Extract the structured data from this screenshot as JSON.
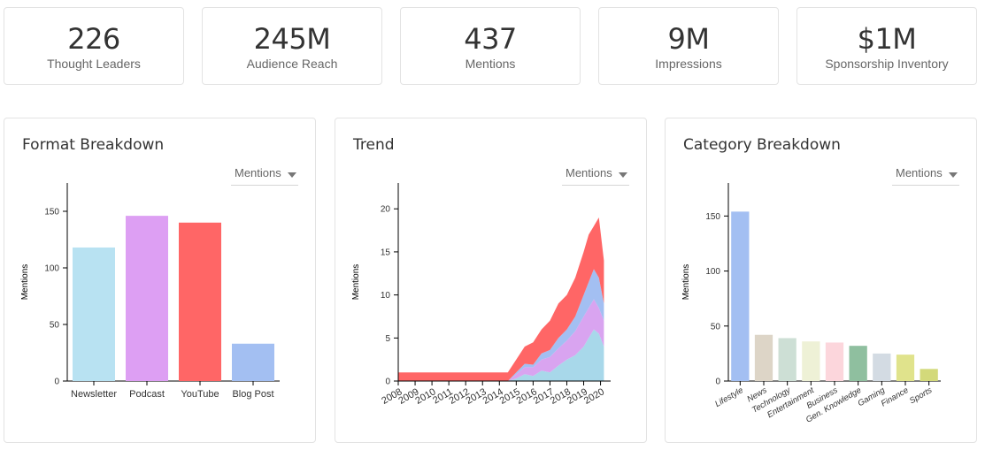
{
  "stats": [
    {
      "value": "226",
      "label": "Thought Leaders"
    },
    {
      "value": "245M",
      "label": "Audience Reach"
    },
    {
      "value": "437",
      "label": "Mentions"
    },
    {
      "value": "9M",
      "label": "Impressions"
    },
    {
      "value": "$1M",
      "label": "Sponsorship Inventory"
    }
  ],
  "panels": {
    "format": {
      "title": "Format Breakdown",
      "dropdown": "Mentions"
    },
    "trend": {
      "title": "Trend",
      "dropdown": "Mentions"
    },
    "category": {
      "title": "Category Breakdown",
      "dropdown": "Mentions"
    }
  },
  "chart_data": [
    {
      "type": "bar",
      "title": "Format Breakdown",
      "ylabel": "Mentions",
      "ylim": [
        0,
        175
      ],
      "yticks": [
        0,
        50,
        100,
        150
      ],
      "categories": [
        "Newsletter",
        "Podcast",
        "YouTube",
        "Blog Post"
      ],
      "values": [
        118,
        146,
        140,
        33
      ],
      "colors": [
        "#b8e2f2",
        "#dd9ff3",
        "#ff6666",
        "#a3bff2"
      ]
    },
    {
      "type": "area",
      "title": "Trend",
      "ylabel": "Mentions",
      "ylim": [
        0,
        23
      ],
      "yticks": [
        0,
        5,
        10,
        15,
        20
      ],
      "xlabels": [
        "2008",
        "2009",
        "2010",
        "2011",
        "2012",
        "2013",
        "2014",
        "2015",
        "2016",
        "2017",
        "2018",
        "2019",
        "2020"
      ],
      "stacked": true,
      "series_colors": [
        "#a8d8ea",
        "#d9a4f0",
        "#a3bff2",
        "#ff6666"
      ],
      "x": [
        2008,
        2014.3,
        2014.5,
        2015,
        2015.5,
        2016,
        2016.5,
        2017,
        2017.5,
        2018,
        2018.5,
        2019,
        2019.3,
        2019.6,
        2019.9,
        2020.2
      ],
      "series": [
        {
          "values": [
            0,
            0,
            0,
            0.3,
            0.8,
            0.6,
            1.2,
            1.0,
            1.8,
            2.5,
            3.0,
            4.0,
            5.0,
            6.0,
            5.5,
            4.0
          ]
        },
        {
          "values": [
            0,
            0,
            0,
            0.5,
            0.8,
            1.0,
            1.3,
            1.8,
            2.0,
            2.2,
            2.8,
            3.5,
            3.5,
            3.5,
            3.0,
            3.0
          ]
        },
        {
          "values": [
            0,
            0,
            0,
            0.2,
            0.4,
            0.3,
            0.7,
            0.8,
            1.2,
            1.3,
            1.7,
            2.5,
            3.0,
            3.5,
            3.5,
            2.0
          ]
        },
        {
          "values": [
            1,
            1,
            1,
            1.5,
            2.0,
            2.6,
            2.8,
            3.4,
            4.0,
            4.0,
            4.5,
            5.0,
            5.5,
            5.0,
            7.0,
            5.0
          ]
        }
      ]
    },
    {
      "type": "bar",
      "title": "Category Breakdown",
      "ylabel": "Mentions",
      "ylim": [
        0,
        180
      ],
      "yticks": [
        0,
        50,
        100,
        150
      ],
      "categories": [
        "Lifestyle",
        "News",
        "Technology",
        "Entertainment",
        "Business",
        "Gen. Knowledge",
        "Gaming",
        "Finance",
        "Sports"
      ],
      "values": [
        154,
        42,
        39,
        36,
        35,
        32,
        25,
        24,
        11
      ],
      "colors": [
        "#a3bff2",
        "#ddd5c7",
        "#cddfd5",
        "#eef1d6",
        "#fcd6dc",
        "#8fbf9f",
        "#d3dbe3",
        "#e0e38c",
        "#d3d97a"
      ]
    }
  ]
}
